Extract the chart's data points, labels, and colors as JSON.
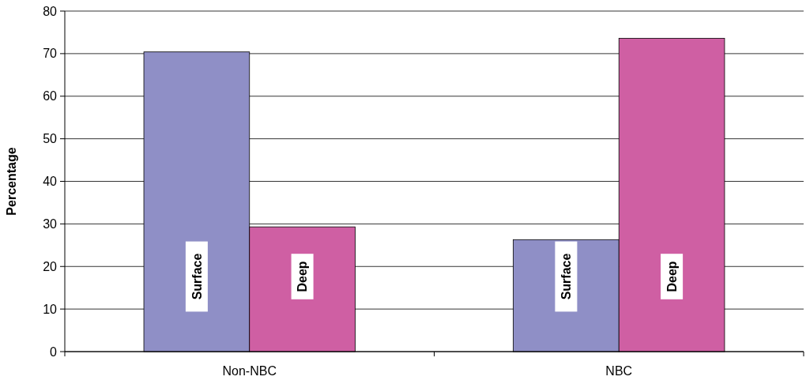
{
  "chart_data": {
    "type": "bar",
    "ylabel": "Percentage",
    "categories": [
      "Non-NBC",
      "NBC"
    ],
    "series": [
      {
        "name": "Surface",
        "color": "#8f8fc6",
        "values": [
          70.4,
          26.3
        ]
      },
      {
        "name": "Deep",
        "color": "#cf5fa3",
        "values": [
          29.3,
          73.6
        ]
      }
    ],
    "ylim": [
      0,
      80
    ],
    "yticks": [
      0,
      10,
      20,
      30,
      40,
      50,
      60,
      70,
      80
    ],
    "grid": "y"
  }
}
